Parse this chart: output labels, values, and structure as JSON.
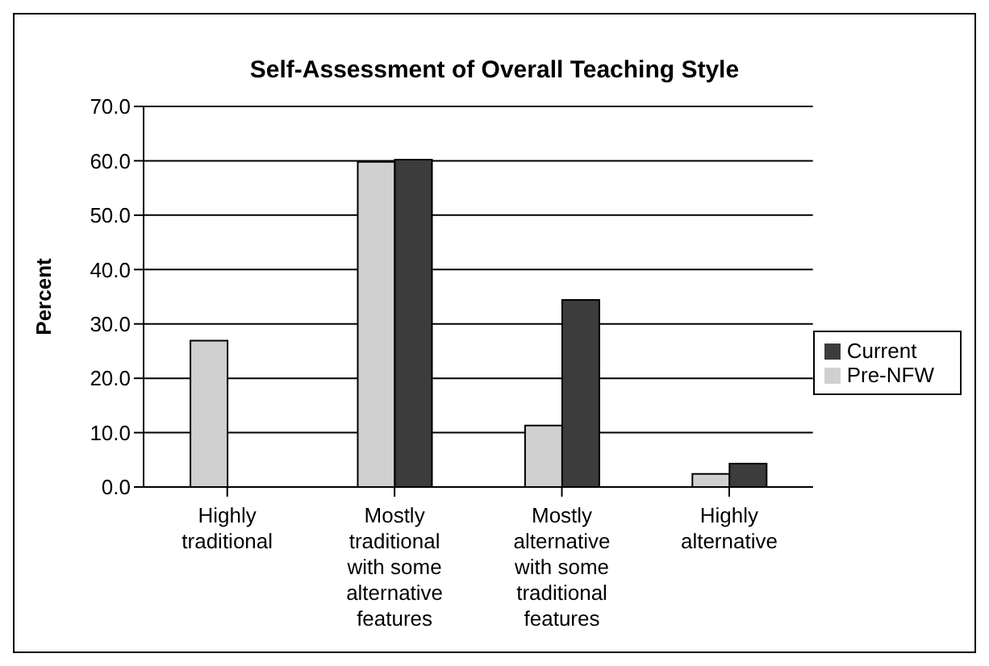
{
  "chart_data": {
    "type": "bar",
    "title": "Self-Assessment of Overall Teaching Style",
    "ylabel": "Percent",
    "categories": [
      "Highly traditional",
      "Mostly traditional with some alternative features",
      "Mostly alternative with some traditional features",
      "Highly alternative"
    ],
    "series": [
      {
        "name": "Pre-NFW",
        "color": "#d0d0d0",
        "values": [
          26.9,
          59.8,
          11.3,
          2.4
        ]
      },
      {
        "name": "Current",
        "color": "#3c3c3c",
        "values": [
          0,
          60.2,
          34.4,
          4.3
        ]
      }
    ],
    "ylim": [
      0,
      70
    ],
    "yticks": [
      {
        "value": 0,
        "label": "0.0"
      },
      {
        "value": 10,
        "label": "10.0"
      },
      {
        "value": 20,
        "label": "20.0"
      },
      {
        "value": 30,
        "label": "30.0"
      },
      {
        "value": 40,
        "label": "40.0"
      },
      {
        "value": 50,
        "label": "50.0"
      },
      {
        "value": 60,
        "label": "60.0"
      },
      {
        "value": 70,
        "label": "70.0"
      }
    ],
    "grid": "y",
    "legend": "right"
  }
}
